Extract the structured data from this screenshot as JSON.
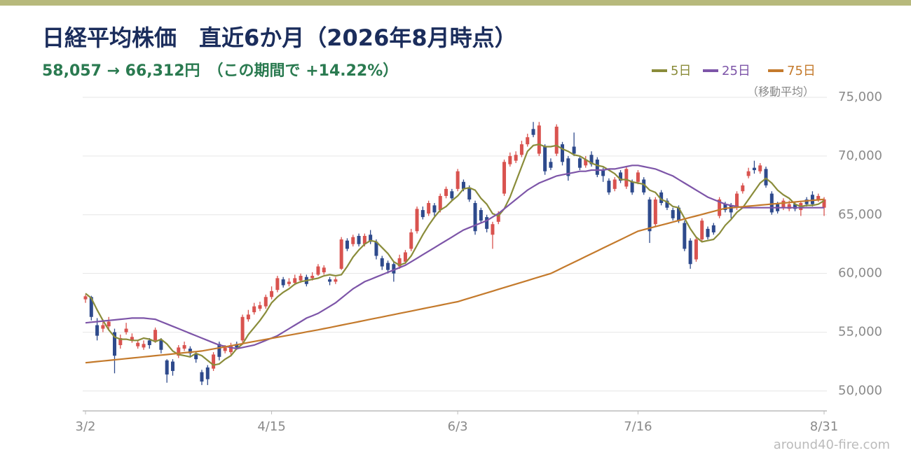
{
  "chart_data": {
    "type": "candlestick",
    "title": "日経平均株価　直近6か月（2026年8月時点）",
    "subtitle": "58,057 → 66,312円　（この期間で +14.22%）",
    "open": [
      57800,
      58000,
      55600,
      55300,
      55500,
      55000,
      53900,
      55000,
      54300,
      53800,
      53700,
      54300,
      54300,
      54300,
      52600,
      52500,
      53000,
      53600,
      53600,
      53100,
      51600,
      52000,
      51900,
      54000,
      53400,
      53300,
      54000,
      54300,
      56100,
      56700,
      57000,
      57200,
      58000,
      58600,
      59500,
      59100,
      59200,
      59400,
      59700,
      59600,
      59900,
      60100,
      59500,
      59300,
      60400,
      62800,
      62500,
      63200,
      62500,
      63300,
      62700,
      61300,
      60900,
      60800,
      60600,
      61000,
      62100,
      63600,
      65400,
      65100,
      65800,
      65400,
      66600,
      67000,
      67200,
      67800,
      67300,
      66000,
      65400,
      64800,
      63300,
      64400,
      66800,
      69300,
      69600,
      70100,
      71000,
      72300,
      70200,
      70800,
      69500,
      70200,
      71000,
      69800,
      70800,
      69800,
      69200,
      70100,
      69700,
      68800,
      67900,
      67200,
      68600,
      67400,
      67800,
      67800,
      68000,
      66300,
      64200,
      66900,
      66200,
      65400,
      65600,
      64300,
      62800,
      61200,
      62900,
      63800,
      64100,
      64900,
      65900,
      65800,
      65600,
      67000,
      68300,
      69000,
      68700,
      68900,
      66800,
      65900,
      65600,
      65500,
      65900,
      65400,
      66300,
      66700,
      66300,
      65600
    ],
    "high": [
      58200,
      58100,
      56200,
      56100,
      56300,
      55300,
      54800,
      55800,
      54900,
      54300,
      54300,
      54500,
      55400,
      54500,
      52700,
      52700,
      53900,
      54200,
      53800,
      53300,
      51800,
      52200,
      53300,
      54200,
      53900,
      54100,
      54200,
      56500,
      56900,
      57500,
      57600,
      58200,
      58900,
      59800,
      59700,
      59600,
      59900,
      60000,
      59900,
      60100,
      60800,
      60700,
      59700,
      59700,
      63100,
      63000,
      63300,
      63400,
      63400,
      63700,
      62900,
      61500,
      61100,
      61000,
      61600,
      62000,
      63800,
      65700,
      65700,
      66200,
      66000,
      66800,
      67400,
      67200,
      68900,
      68000,
      67500,
      66200,
      65600,
      65000,
      64400,
      65300,
      69700,
      70300,
      70400,
      71300,
      71900,
      72900,
      72900,
      71000,
      69800,
      72700,
      71200,
      70000,
      72000,
      70000,
      70000,
      70400,
      69900,
      69000,
      68100,
      68200,
      68800,
      69100,
      68000,
      68800,
      68200,
      66500,
      66500,
      67100,
      66400,
      65600,
      65800,
      64500,
      63000,
      63100,
      64700,
      64000,
      64300,
      66500,
      66100,
      66000,
      67000,
      67700,
      69000,
      69600,
      69400,
      69100,
      67000,
      66100,
      66400,
      66200,
      66100,
      66200,
      66500,
      67000,
      66800,
      66500
    ],
    "low": [
      57500,
      56000,
      54300,
      55000,
      55200,
      51500,
      53600,
      54800,
      54100,
      53600,
      53500,
      53600,
      54100,
      53200,
      50700,
      51300,
      52800,
      53400,
      52900,
      52400,
      50500,
      50500,
      51700,
      52600,
      53200,
      53100,
      53500,
      54100,
      55900,
      56500,
      56800,
      57000,
      57800,
      58400,
      58800,
      58900,
      59000,
      59200,
      58900,
      59400,
      59800,
      59900,
      59000,
      59100,
      60300,
      61900,
      62300,
      62300,
      62300,
      62500,
      61200,
      60300,
      60000,
      59300,
      60400,
      60800,
      61900,
      63400,
      64600,
      64900,
      64900,
      65200,
      66400,
      66200,
      67000,
      67000,
      66100,
      63300,
      64300,
      63500,
      62100,
      64200,
      66600,
      69100,
      69400,
      69900,
      70800,
      71600,
      70000,
      68400,
      68800,
      70000,
      69200,
      67900,
      70000,
      68800,
      69000,
      69100,
      68200,
      67800,
      66700,
      67000,
      67700,
      67200,
      66700,
      67600,
      66700,
      62600,
      64000,
      65800,
      65400,
      64500,
      64300,
      61900,
      60400,
      61000,
      62700,
      62900,
      63300,
      64700,
      65200,
      64700,
      65400,
      66800,
      68100,
      68500,
      68500,
      67300,
      65000,
      65100,
      65400,
      65300,
      65300,
      64900,
      65700,
      65700,
      66100,
      64900
    ],
    "close": [
      58057,
      56300,
      54700,
      55600,
      55900,
      53000,
      54500,
      55300,
      54600,
      54100,
      54000,
      53900,
      55200,
      53500,
      51400,
      51700,
      53700,
      53900,
      53200,
      52700,
      50800,
      51000,
      53100,
      52900,
      53700,
      53900,
      53700,
      56300,
      56500,
      57200,
      57300,
      58000,
      58500,
      59600,
      59000,
      59300,
      59600,
      59800,
      59100,
      59800,
      60600,
      60500,
      59300,
      59500,
      62900,
      62100,
      63100,
      62500,
      63200,
      62700,
      61500,
      60600,
      60300,
      60000,
      61300,
      61800,
      63500,
      65500,
      64800,
      66000,
      65200,
      66600,
      67200,
      66400,
      68700,
      67200,
      66300,
      63600,
      64500,
      63800,
      64200,
      65000,
      69500,
      70000,
      70100,
      71000,
      71600,
      71800,
      72600,
      68700,
      69000,
      72500,
      69500,
      68300,
      70200,
      69000,
      69700,
      69300,
      68400,
      68300,
      66900,
      68000,
      67900,
      68900,
      66900,
      68600,
      66900,
      63600,
      66300,
      66000,
      65600,
      64700,
      64500,
      62100,
      60800,
      62900,
      64500,
      63100,
      63500,
      66300,
      65400,
      65200,
      66800,
      67500,
      68700,
      68800,
      69200,
      67500,
      65200,
      65300,
      66200,
      65900,
      65500,
      66000,
      65900,
      65900,
      66600,
      66312
    ],
    "up_color": "#d9534f",
    "down_color": "#2e4a8c",
    "series": [
      {
        "name": "5日",
        "color": "#8a8c3a",
        "values": [
          58300,
          57900,
          56900,
          56000,
          55200,
          54600,
          54400,
          54400,
          54300,
          54300,
          54500,
          54400,
          54200,
          54400,
          54000,
          53400,
          53100,
          53000,
          52900,
          53200,
          53000,
          52600,
          52200,
          52300,
          52700,
          53000,
          53600,
          54000,
          54800,
          55400,
          56000,
          56700,
          57500,
          58000,
          58400,
          58700,
          59100,
          59300,
          59400,
          59500,
          59600,
          59800,
          59900,
          59800,
          59900,
          60600,
          61400,
          62000,
          62500,
          62800,
          62700,
          62200,
          61700,
          61000,
          60700,
          60900,
          61500,
          62400,
          63300,
          64100,
          64800,
          65400,
          65700,
          66200,
          66600,
          67200,
          67300,
          67100,
          66400,
          65900,
          65100,
          64900,
          65500,
          66500,
          67800,
          69100,
          70400,
          70900,
          71000,
          70800,
          70800,
          70900,
          70600,
          70400,
          70100,
          70000,
          69700,
          69400,
          69200,
          69100,
          68800,
          68500,
          68000,
          68000,
          67800,
          67700,
          67600,
          67100,
          66900,
          66300,
          66100,
          65700,
          65600,
          64700,
          63800,
          63100,
          62700,
          62800,
          62900,
          63400,
          64100,
          64600,
          65200,
          65600,
          66300,
          67000,
          67700,
          68100,
          67700,
          67100,
          66700,
          66400,
          65900,
          65700,
          65800,
          65800,
          65900,
          66200
        ]
      },
      {
        "name": "25日",
        "color": "#7d55a8",
        "values": [
          55800,
          55850,
          55900,
          55950,
          56000,
          56050,
          56100,
          56150,
          56200,
          56200,
          56200,
          56150,
          56100,
          55900,
          55700,
          55500,
          55300,
          55100,
          54900,
          54700,
          54500,
          54300,
          54100,
          53900,
          53800,
          53700,
          53600,
          53700,
          53800,
          53900,
          54100,
          54300,
          54500,
          54700,
          55000,
          55300,
          55600,
          55900,
          56200,
          56400,
          56600,
          56900,
          57200,
          57500,
          57900,
          58300,
          58700,
          59000,
          59300,
          59500,
          59700,
          59900,
          60100,
          60300,
          60500,
          60700,
          61000,
          61300,
          61600,
          61900,
          62200,
          62500,
          62800,
          63100,
          63400,
          63700,
          63900,
          64100,
          64300,
          64500,
          64800,
          65100,
          65500,
          65900,
          66300,
          66700,
          67100,
          67400,
          67700,
          67900,
          68100,
          68300,
          68400,
          68500,
          68600,
          68700,
          68700,
          68800,
          68800,
          68800,
          68900,
          68900,
          69000,
          69100,
          69200,
          69200,
          69100,
          69000,
          68900,
          68700,
          68500,
          68300,
          68000,
          67700,
          67400,
          67100,
          66800,
          66500,
          66300,
          66100,
          65900,
          65800,
          65700,
          65600,
          65600,
          65600,
          65600,
          65600,
          65600,
          65600,
          65600,
          65600,
          65600,
          65600,
          65600,
          65600,
          65600,
          65600
        ]
      },
      {
        "name": "75日",
        "color": "#c47a2c",
        "values": [
          52400,
          52450,
          52500,
          52550,
          52600,
          52650,
          52700,
          52750,
          52800,
          52850,
          52900,
          52950,
          53000,
          53050,
          53100,
          53150,
          53200,
          53250,
          53300,
          53350,
          53400,
          53490,
          53580,
          53670,
          53760,
          53850,
          53940,
          54030,
          54120,
          54210,
          54300,
          54390,
          54480,
          54570,
          54660,
          54750,
          54840,
          54930,
          55020,
          55110,
          55200,
          55300,
          55400,
          55500,
          55600,
          55700,
          55800,
          55900,
          56000,
          56100,
          56200,
          56300,
          56400,
          56500,
          56600,
          56700,
          56800,
          56900,
          57000,
          57100,
          57200,
          57300,
          57400,
          57500,
          57600,
          57750,
          57900,
          58050,
          58200,
          58350,
          58500,
          58650,
          58800,
          58950,
          59100,
          59250,
          59400,
          59550,
          59700,
          59850,
          60000,
          60240,
          60480,
          60720,
          60960,
          61200,
          61440,
          61680,
          61920,
          62160,
          62400,
          62640,
          62880,
          63120,
          63360,
          63600,
          63730,
          63860,
          63990,
          64120,
          64250,
          64380,
          64510,
          64640,
          64770,
          64900,
          65030,
          65160,
          65290,
          65420,
          65550,
          65595,
          65640,
          65685,
          65730,
          65775,
          65820,
          65865,
          65910,
          65955,
          66000,
          66045,
          66090,
          66135,
          66180,
          66225,
          66270,
          66315
        ]
      }
    ],
    "legend_note": "（移動平均）",
    "xlim": [
      0,
      127
    ],
    "xticks": [
      {
        "value": 0,
        "label": "3/2"
      },
      {
        "value": 32,
        "label": "4/15"
      },
      {
        "value": 64,
        "label": "6/3"
      },
      {
        "value": 95,
        "label": "7/16"
      },
      {
        "value": 127,
        "label": "8/31"
      }
    ],
    "ylim": [
      48300,
      75000
    ],
    "yticks": [
      {
        "value": 50000,
        "label": "50,000"
      },
      {
        "value": 55000,
        "label": "55,000"
      },
      {
        "value": 60000,
        "label": "60,000"
      },
      {
        "value": 65000,
        "label": "65,000"
      },
      {
        "value": 70000,
        "label": "70,000"
      },
      {
        "value": 75000,
        "label": "75,000"
      }
    ],
    "grid": true,
    "watermark": "around40-fire.com"
  }
}
